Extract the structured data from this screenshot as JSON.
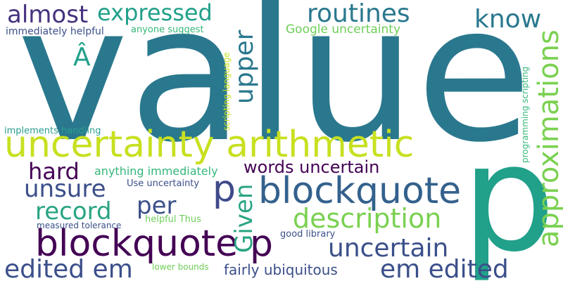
{
  "palette": {
    "background": "#ffffff",
    "dark_purple": "#440154",
    "indigo": "#3b4f8a",
    "blue": "#34618d",
    "teal": "#2a788e",
    "teal_green": "#21918c",
    "green": "#35b779",
    "lime": "#7ad151",
    "light_green": "#6ece58",
    "yellow": "#c8e020"
  },
  "words": [
    {
      "text": "value",
      "color": "#2a788e"
    },
    {
      "text": "p",
      "color": "#21a08a"
    },
    {
      "text": "uncertainty arithmetic",
      "color": "#c8e020"
    },
    {
      "text": "blockquote",
      "color": "#440154"
    },
    {
      "text": "blockquote",
      "color": "#34618d"
    },
    {
      "text": "p",
      "color": "#3e4a89"
    },
    {
      "text": "p",
      "color": "#440154"
    },
    {
      "text": "approximations",
      "color": "#7ad151"
    },
    {
      "text": "description",
      "color": "#7ad151"
    },
    {
      "text": "em edited",
      "color": "#3b4f8a"
    },
    {
      "text": "edited em",
      "color": "#3b4f8a"
    },
    {
      "text": "uncertain",
      "color": "#3b4f8a"
    },
    {
      "text": "expressed",
      "color": "#21a08a"
    },
    {
      "text": "routines",
      "color": "#2a788e"
    },
    {
      "text": "almost",
      "color": "#46327e"
    },
    {
      "text": "record",
      "color": "#29a483"
    },
    {
      "text": "unsure",
      "color": "#3b4f8a"
    },
    {
      "text": "hard",
      "color": "#440154"
    },
    {
      "text": "per",
      "color": "#3b4f8a"
    },
    {
      "text": "upper",
      "color": "#2a788e"
    },
    {
      "text": "Given",
      "color": "#29a483"
    },
    {
      "text": "know",
      "color": "#2a788e"
    },
    {
      "text": "Â",
      "color": "#21a08a"
    },
    {
      "text": "words uncertain",
      "color": "#440154"
    },
    {
      "text": "fairly ubiquitous",
      "color": "#3b4f8a"
    },
    {
      "text": "Google uncertainty",
      "color": "#6ece58"
    },
    {
      "text": "anything immediately",
      "color": "#35b779"
    },
    {
      "text": "immediately helpful",
      "color": "#3b4f8a"
    },
    {
      "text": "anyone suggest",
      "color": "#35b779"
    },
    {
      "text": "implements handling",
      "color": "#2a9d8f"
    },
    {
      "text": "Use uncertainty",
      "color": "#3b4f8a"
    },
    {
      "text": "helpful Thus",
      "color": "#6ece58"
    },
    {
      "text": "measured tolerance",
      "color": "#3b4f8a"
    },
    {
      "text": "good library",
      "color": "#3b4f8a"
    },
    {
      "text": "lower bounds",
      "color": "#6ece58"
    },
    {
      "text": "scripting language",
      "color": "#c8e020"
    },
    {
      "text": "programming scripting",
      "color": "#35b779"
    }
  ]
}
